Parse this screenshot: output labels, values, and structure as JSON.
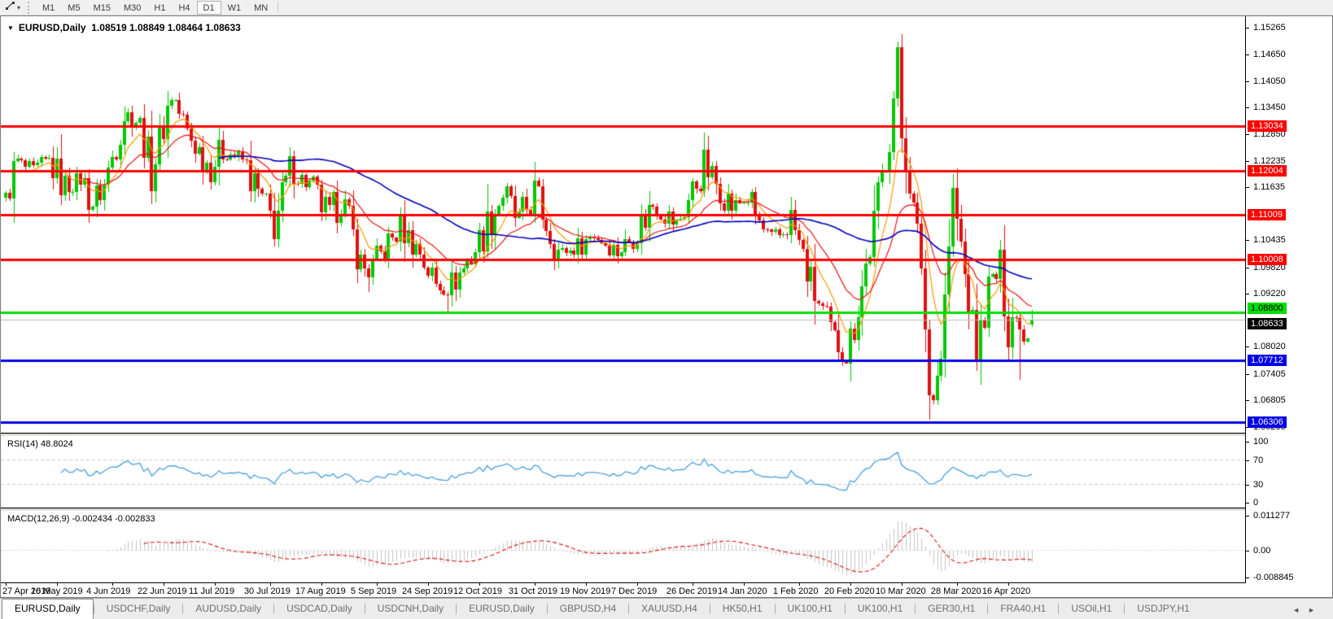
{
  "toolbar": {
    "timeframes": [
      "M1",
      "M5",
      "M15",
      "M30",
      "H1",
      "H4",
      "D1",
      "W1",
      "MN"
    ],
    "active_timeframe": "D1"
  },
  "icons": {
    "symbol_dropdown": "▼",
    "tool_dropdown": "▾",
    "tabs_scroll_left": "◄",
    "tabs_scroll_right": "►"
  },
  "chart": {
    "title_symbol": "EURUSD,Daily",
    "title_values": "1.08519 1.08849 1.08464 1.08633"
  },
  "chart_data": {
    "type": "candlestick",
    "symbol": "EURUSD",
    "timeframe": "Daily",
    "ohlc_current": {
      "open": 1.08519,
      "high": 1.08849,
      "low": 1.08464,
      "close": 1.08633
    },
    "ylim": [
      1.0607,
      1.155
    ],
    "y_ticks": [
      "1.15265",
      "1.14650",
      "1.14050",
      "1.13450",
      "1.12850",
      "1.12235",
      "1.11635",
      "1.10435",
      "1.09820",
      "1.09220",
      "1.08020",
      "1.07405",
      "1.06805",
      "1.06205"
    ],
    "x_labels": [
      "27 Apr 2019",
      "16 May 2019",
      "4 Jun 2019",
      "22 Jun 2019",
      "11 Jul 2019",
      "30 Jul 2019",
      "17 Aug 2019",
      "5 Sep 2019",
      "24 Sep 2019",
      "12 Oct 2019",
      "31 Oct 2019",
      "19 Nov 2019",
      "7 Dec 2019",
      "26 Dec 2019",
      "14 Jan 2020",
      "1 Feb 2020",
      "20 Feb 2020",
      "10 Mar 2020",
      "28 Mar 2020",
      "16 Apr 2020"
    ],
    "candles_per_x_label": 13.37,
    "num_candles": 261,
    "levels": [
      {
        "price": 1.13034,
        "label": "1.13034",
        "color": "#FF0000",
        "text_color": "#FFFFFF"
      },
      {
        "price": 1.12004,
        "label": "1.12004",
        "color": "#FF0000",
        "text_color": "#FFFFFF"
      },
      {
        "price": 1.11009,
        "label": "1.11009",
        "color": "#FF0000",
        "text_color": "#FFFFFF"
      },
      {
        "price": 1.10008,
        "label": "1.10008",
        "color": "#FF0000",
        "text_color": "#FFFFFF"
      },
      {
        "price": 1.088,
        "label": "1.08800",
        "color": "#00DD00",
        "text_color": "#000000",
        "nudge": -5
      },
      {
        "price": 1.07712,
        "label": "1.07712",
        "color": "#0000E6",
        "text_color": "#FFFFFF"
      },
      {
        "price": 1.06306,
        "label": "1.06306",
        "color": "#0000E6",
        "text_color": "#FFFFFF"
      }
    ],
    "current_price": {
      "price": 1.08633,
      "label": "1.08633",
      "color": "#000000",
      "text_color": "#FFFFFF",
      "line_color": "#BBBBBB",
      "nudge": 5
    },
    "candle_colors": {
      "up": "#00C800",
      "down": "#E01010"
    },
    "close_anchors": [
      [
        0,
        1.1152
      ],
      [
        3,
        1.1218
      ],
      [
        7,
        1.1196
      ],
      [
        11,
        1.1224
      ],
      [
        15,
        1.1162
      ],
      [
        19,
        1.1182
      ],
      [
        22,
        1.113
      ],
      [
        25,
        1.1168
      ],
      [
        30,
        1.1333
      ],
      [
        34,
        1.131
      ],
      [
        37,
        1.1196
      ],
      [
        42,
        1.138
      ],
      [
        46,
        1.1285
      ],
      [
        52,
        1.121
      ],
      [
        55,
        1.125
      ],
      [
        60,
        1.1225
      ],
      [
        64,
        1.1148
      ],
      [
        68,
        1.1078
      ],
      [
        72,
        1.12
      ],
      [
        77,
        1.117
      ],
      [
        82,
        1.109
      ],
      [
        85,
        1.1145
      ],
      [
        90,
        1.0989
      ],
      [
        92,
        1.0972
      ],
      [
        100,
        1.1073
      ],
      [
        105,
        1.1017
      ],
      [
        109,
        1.094
      ],
      [
        112,
        1.0932
      ],
      [
        116,
        1.098
      ],
      [
        120,
        1.1042
      ],
      [
        126,
        1.1151
      ],
      [
        130,
        1.108
      ],
      [
        134,
        1.1152
      ],
      [
        140,
        1.1017
      ],
      [
        144,
        1.1021
      ],
      [
        149,
        1.1059
      ],
      [
        155,
        1.1018
      ],
      [
        160,
        1.106
      ],
      [
        164,
        1.113
      ],
      [
        170,
        1.1078
      ],
      [
        177,
        1.1212
      ],
      [
        184,
        1.1122
      ],
      [
        188,
        1.1136
      ],
      [
        194,
        1.1024
      ],
      [
        199,
        1.1094
      ],
      [
        204,
        1.0945
      ],
      [
        209,
        1.083
      ],
      [
        213,
        1.0785
      ],
      [
        215,
        1.0854
      ],
      [
        219,
        1.1027
      ],
      [
        221,
        1.114
      ],
      [
        224,
        1.1284
      ],
      [
        226,
        1.1448
      ],
      [
        227,
        1.1281
      ],
      [
        229,
        1.1184
      ],
      [
        230,
        1.1106
      ],
      [
        232,
        1.0995
      ],
      [
        234,
        1.0692
      ],
      [
        235,
        1.0694
      ],
      [
        237,
        1.0789
      ],
      [
        239,
        1.103
      ],
      [
        240,
        1.114
      ],
      [
        242,
        1.1031
      ],
      [
        243,
        1.0961
      ],
      [
        246,
        1.0791
      ],
      [
        249,
        1.093
      ],
      [
        252,
        1.098
      ],
      [
        253,
        1.091
      ],
      [
        254,
        1.0839
      ],
      [
        255,
        1.0875
      ],
      [
        256,
        1.0862
      ],
      [
        257,
        1.0858
      ],
      [
        258,
        1.0822
      ],
      [
        259,
        1.0852
      ],
      [
        260,
        1.08633
      ]
    ],
    "wick_overrides": [
      [
        69,
        "low",
        1.1027
      ],
      [
        92,
        "low",
        1.0926
      ],
      [
        112,
        "low",
        1.0879
      ],
      [
        213,
        "low",
        1.0778
      ],
      [
        226,
        "high",
        1.1495
      ],
      [
        234,
        "low",
        1.0636
      ],
      [
        257,
        "low",
        1.0727
      ]
    ],
    "final_candle": [
      1.08519,
      1.08849,
      1.08464,
      1.08633
    ],
    "moving_averages": [
      {
        "name": "ma-fast",
        "type": "ema",
        "period": 8,
        "color": "#FF9900",
        "width": 1.2
      },
      {
        "name": "ma-mid",
        "type": "ema",
        "period": 21,
        "color": "#EE1111",
        "width": 1.2
      },
      {
        "name": "ma-slow",
        "type": "sma",
        "period": 55,
        "color": "#0000BB",
        "width": 1.6
      }
    ],
    "rsi": {
      "label": "RSI(14) 48.8024",
      "period": 14,
      "current": 48.8024,
      "levels": [
        70,
        30
      ],
      "tick_values": [
        100,
        70,
        30,
        0
      ],
      "ticks": [
        "100",
        "70",
        "30",
        "0"
      ],
      "color": "#4AA0E0",
      "level_color": "#C9C9C9"
    },
    "macd": {
      "label": "MACD(12,26,9) -0.002434 -0.002833",
      "fast": 12,
      "slow": 26,
      "signal": 9,
      "main_value": -0.002434,
      "signal_value": -0.002833,
      "range": [
        -0.008845,
        0.011277
      ],
      "tick_values": [
        0.011277,
        0,
        -0.008845
      ],
      "ticks": [
        "0.011277",
        "0.00",
        "-0.008845"
      ],
      "hist_color": "#C4C4C4",
      "signal_color": "#E01010",
      "zero_color": "#D8D8D8"
    }
  },
  "tabs": {
    "items": [
      "EURUSD,Daily",
      "USDCHF,Daily",
      "AUDUSD,Daily",
      "USDCAD,Daily",
      "USDCNH,Daily",
      "EURUSD,Daily",
      "GBPUSD,H4",
      "XAUUSD,H4",
      "HK50,H1",
      "UK100,H1",
      "UK100,H1",
      "GER30,H1",
      "FRA40,H1",
      "USOil,H1",
      "USDJPY,H1"
    ],
    "active_index": 0
  }
}
